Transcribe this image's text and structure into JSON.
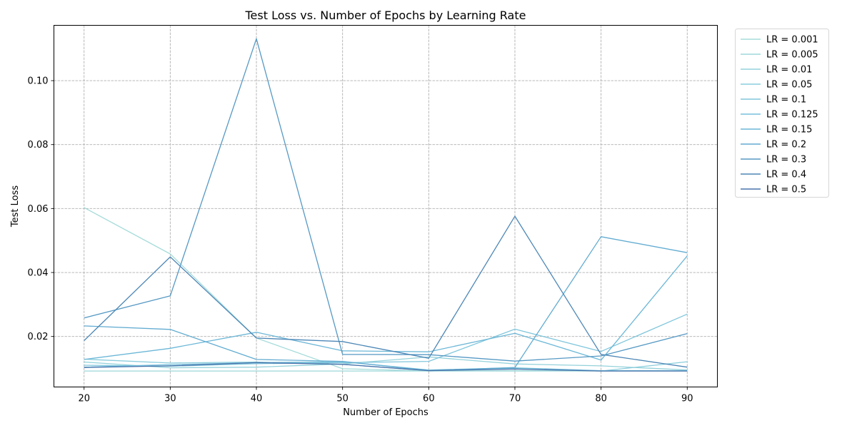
{
  "chart_data": {
    "type": "line",
    "title": "Test Loss vs. Number of Epochs by Learning Rate",
    "xlabel": "Number of Epochs",
    "ylabel": "Test Loss",
    "x": [
      20,
      30,
      40,
      50,
      60,
      70,
      80,
      90
    ],
    "xlim": [
      16.5,
      93.5
    ],
    "ylim": [
      0.0042,
      0.1173
    ],
    "xticks": [
      20,
      30,
      40,
      50,
      60,
      70,
      80,
      90
    ],
    "yticks": [
      0.02,
      0.04,
      0.06,
      0.08,
      0.1
    ],
    "ytick_labels": [
      "0.02",
      "0.04",
      "0.06",
      "0.08",
      "0.10"
    ],
    "grid": true,
    "legend_position": "outside-right",
    "series": [
      {
        "name": "LR = 0.001",
        "color": "#a6dcda",
        "values": [
          0.0603,
          0.0458,
          0.0195,
          0.0099,
          0.0092,
          0.0093,
          0.0093,
          0.0093
        ]
      },
      {
        "name": "LR = 0.005",
        "color": "#9dd7da",
        "values": [
          0.0092,
          0.0092,
          0.0092,
          0.0092,
          0.0092,
          0.0092,
          0.0092,
          0.0092
        ]
      },
      {
        "name": "LR = 0.01",
        "color": "#94d2db",
        "values": [
          0.012,
          0.0102,
          0.0104,
          0.0114,
          0.0136,
          0.0114,
          0.0108,
          0.0095
        ]
      },
      {
        "name": "LR = 0.05",
        "color": "#8acddc",
        "values": [
          0.0129,
          0.0117,
          0.012,
          0.0113,
          0.0093,
          0.01,
          0.0092,
          0.0121
        ]
      },
      {
        "name": "LR = 0.1",
        "color": "#80c6dc",
        "values": [
          0.011,
          0.0107,
          0.0115,
          0.0118,
          0.0122,
          0.0223,
          0.0153,
          0.027
        ]
      },
      {
        "name": "LR = 0.125",
        "color": "#76bfdb",
        "values": [
          0.0104,
          0.0112,
          0.0118,
          0.0121,
          0.0095,
          0.0102,
          0.0093,
          0.0093
        ]
      },
      {
        "name": "LR = 0.15",
        "color": "#6cb7d7",
        "values": [
          0.0128,
          0.0163,
          0.0213,
          0.0155,
          0.0152,
          0.021,
          0.0126,
          0.0452
        ]
      },
      {
        "name": "LR = 0.2",
        "color": "#62acd1",
        "values": [
          0.0233,
          0.0222,
          0.0128,
          0.0122,
          0.0093,
          0.0103,
          0.0512,
          0.0462
        ]
      },
      {
        "name": "LR = 0.3",
        "color": "#5699c4",
        "values": [
          0.0258,
          0.0327,
          0.1131,
          0.0144,
          0.0143,
          0.0123,
          0.0139,
          0.0209
        ]
      },
      {
        "name": "LR = 0.4",
        "color": "#4d87b6",
        "values": [
          0.0187,
          0.0449,
          0.0195,
          0.0184,
          0.0132,
          0.0576,
          0.0144,
          0.0104
        ]
      },
      {
        "name": "LR = 0.5",
        "color": "#4a73ab",
        "values": [
          0.0103,
          0.0108,
          0.0118,
          0.0113,
          0.0093,
          0.0098,
          0.0092,
          0.0092
        ]
      }
    ]
  }
}
